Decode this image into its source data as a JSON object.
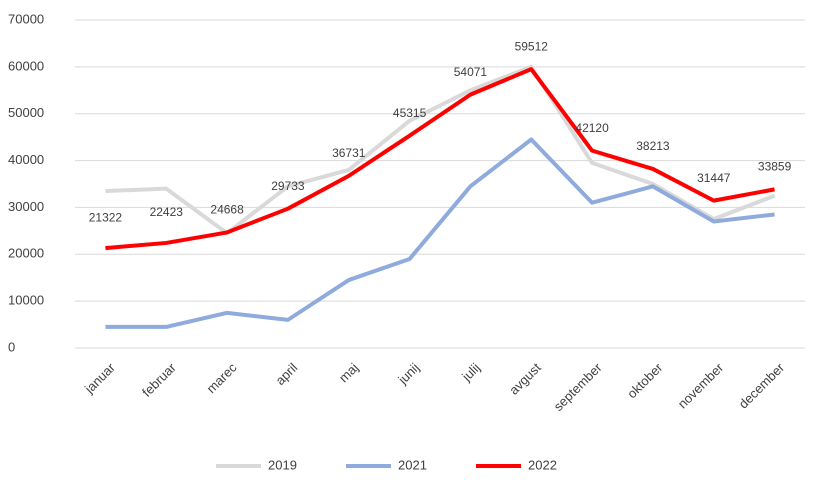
{
  "chart_data": {
    "type": "line",
    "categories": [
      "januar",
      "februar",
      "marec",
      "april",
      "maj",
      "junij",
      "julij",
      "avgust",
      "september",
      "oktober",
      "november",
      "december"
    ],
    "series": [
      {
        "name": "2019",
        "color": "#d9d9d9",
        "values": [
          33500,
          34000,
          24500,
          34500,
          38000,
          48500,
          55000,
          60000,
          39500,
          35000,
          27500,
          32500
        ]
      },
      {
        "name": "2021",
        "color": "#8faadc",
        "values": [
          4500,
          4500,
          7500,
          6000,
          14500,
          19000,
          34500,
          44500,
          31000,
          34500,
          27000,
          28500
        ]
      },
      {
        "name": "2022",
        "color": "#ff0000",
        "values": [
          21322,
          22423,
          24668,
          29733,
          36731,
          45315,
          54071,
          59512,
          42120,
          38213,
          31447,
          33859
        ],
        "data_labels": true
      }
    ],
    "ylim": [
      0,
      70000
    ],
    "yticks": [
      0,
      10000,
      20000,
      30000,
      40000,
      50000,
      60000,
      70000
    ],
    "grid": true,
    "legend": "bottom"
  }
}
